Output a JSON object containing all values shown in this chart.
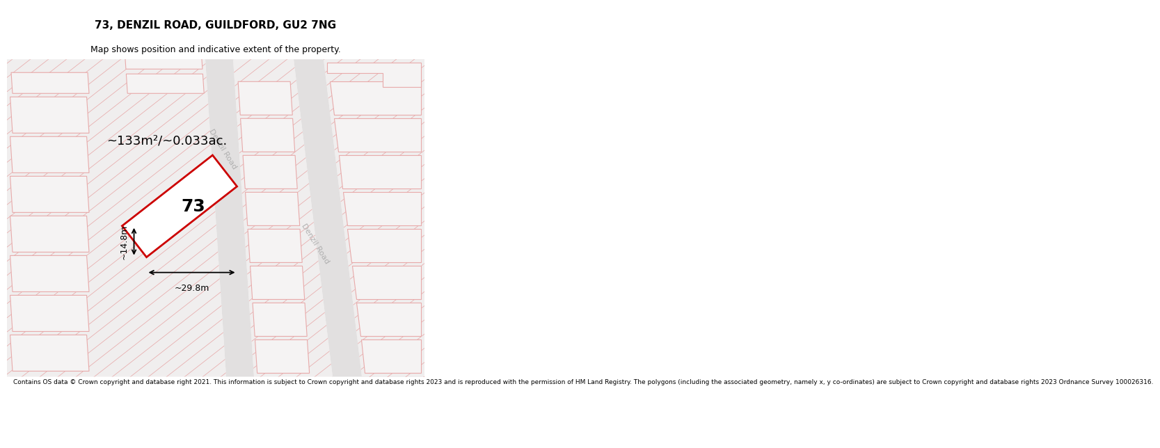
{
  "title": "73, DENZIL ROAD, GUILDFORD, GU2 7NG",
  "subtitle": "Map shows position and indicative extent of the property.",
  "footer": "Contains OS data © Crown copyright and database right 2021. This information is subject to Crown copyright and database rights 2023 and is reproduced with the permission of HM Land Registry. The polygons (including the associated geometry, namely x, y co-ordinates) are subject to Crown copyright and database rights 2023 Ordnance Survey 100026316.",
  "area_label": "~133m²/~0.033ac.",
  "width_label": "~29.8m",
  "height_label": "~14.8m",
  "plot_number": "73",
  "background_color": "#ffffff",
  "map_bg": "#f0eeee",
  "road_fill": "#e2e0e0",
  "building_fill": "#f5f3f3",
  "building_edge": "#e8aaaa",
  "hatch_color": "#e8aaaa",
  "road_label_color": "#b0b0b0",
  "plot_edge_color": "#cc0000",
  "dim_color": "#000000",
  "title_fontsize": 11,
  "subtitle_fontsize": 9,
  "footer_fontsize": 6.5,
  "area_fontsize": 13,
  "plot_label_fontsize": 18,
  "dim_fontsize": 9,
  "road_label_fontsize": 8
}
